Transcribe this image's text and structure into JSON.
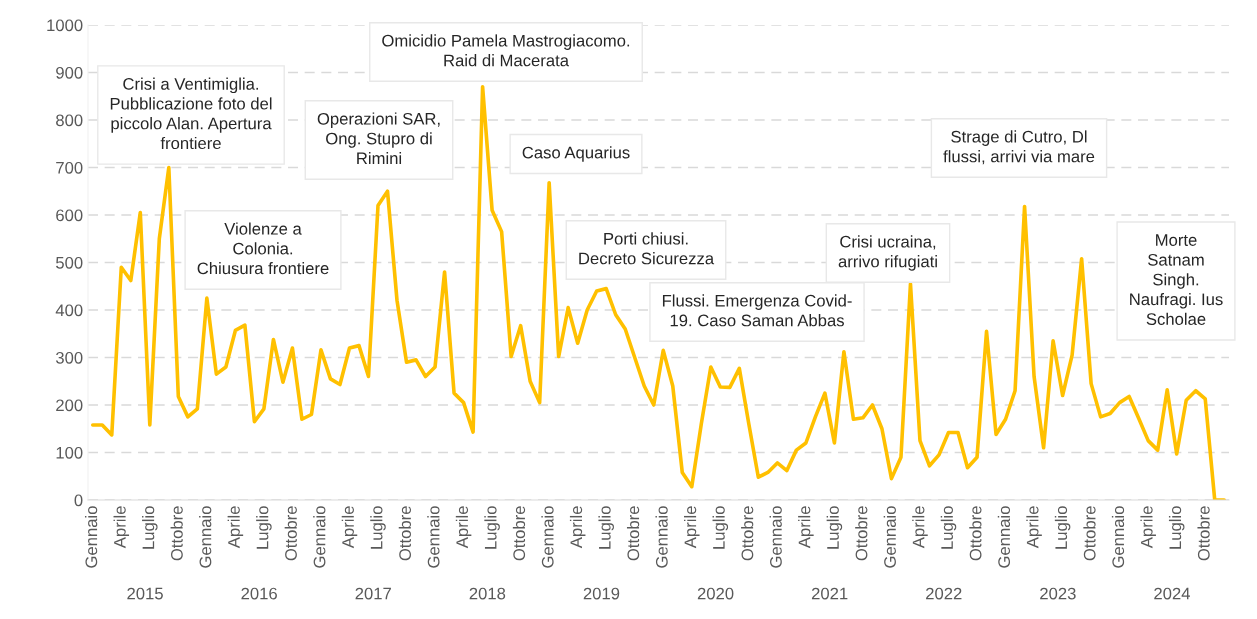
{
  "chart_data": {
    "type": "line",
    "categories": [
      "Gennaio",
      null,
      null,
      "Aprile",
      null,
      null,
      "Luglio",
      null,
      null,
      "Ottobre",
      null,
      null,
      "Gennaio",
      null,
      null,
      "Aprile",
      null,
      null,
      "Luglio",
      null,
      null,
      "Ottobre",
      null,
      null,
      "Gennaio",
      null,
      null,
      "Aprile",
      null,
      null,
      "Luglio",
      null,
      null,
      "Ottobre",
      null,
      null,
      "Gennaio",
      null,
      null,
      "Aprile",
      null,
      null,
      "Luglio",
      null,
      null,
      "Ottobre",
      null,
      null,
      "Gennaio",
      null,
      null,
      "Aprile",
      null,
      null,
      "Luglio",
      null,
      null,
      "Ottobre",
      null,
      null,
      "Gennaio",
      null,
      null,
      "Aprile",
      null,
      null,
      "Luglio",
      null,
      null,
      "Ottobre",
      null,
      null,
      "Gennaio",
      null,
      null,
      "Aprile",
      null,
      null,
      "Luglio",
      null,
      null,
      "Ottobre",
      null,
      null,
      "Gennaio",
      null,
      null,
      "Aprile",
      null,
      null,
      "Luglio",
      null,
      null,
      "Ottobre",
      null,
      null,
      "Gennaio",
      null,
      null,
      "Aprile",
      null,
      null,
      "Luglio",
      null,
      null,
      "Ottobre",
      null,
      null,
      "Gennaio",
      null,
      null,
      "Aprile",
      null,
      null,
      "Luglio",
      null,
      null,
      "Ottobre",
      null,
      null
    ],
    "series": [
      {
        "color": "#ffc000",
        "values": [
          158,
          158,
          137,
          490,
          462,
          605,
          158,
          550,
          700,
          218,
          175,
          192,
          425,
          265,
          280,
          357,
          368,
          165,
          192,
          338,
          248,
          320,
          170,
          180,
          316,
          255,
          243,
          320,
          325,
          260,
          620,
          650,
          420,
          290,
          295,
          260,
          280,
          480,
          225,
          205,
          143,
          870,
          610,
          565,
          302,
          367,
          250,
          205,
          668,
          302,
          405,
          330,
          400,
          440,
          445,
          390,
          360,
          300,
          240,
          200,
          315,
          240,
          58,
          28,
          160,
          280,
          238,
          237,
          277,
          160,
          48,
          58,
          78,
          62,
          105,
          120,
          175,
          225,
          120,
          312,
          170,
          173,
          200,
          150,
          45,
          90,
          455,
          125,
          72,
          95,
          142,
          142,
          68,
          90,
          355,
          138,
          170,
          230,
          618,
          260,
          110,
          335,
          220,
          305,
          508,
          245,
          175,
          182,
          205,
          218,
          172,
          125,
          105,
          232,
          97,
          210,
          230,
          213,
          0,
          0
        ]
      }
    ],
    "ylim": [
      0,
      1000
    ],
    "yticks": [
      0,
      100,
      200,
      300,
      400,
      500,
      600,
      700,
      800,
      900,
      1000
    ],
    "grid": "y",
    "marker": "none",
    "line_style": "solid",
    "annotations": [
      "Crisi a Ventimiglia.\nPubblicazione foto del\npiccolo Alan. Apertura\nfrontiere",
      "Violenze a\nColonia.\nChiusura frontiere",
      "Operazioni SAR,\nOng. Stupro di\nRimini",
      "Omicidio Pamela Mastrogiacomo.\nRaid di Macerata",
      "Caso Aquarius",
      "Porti chiusi.\nDecreto Sicurezza",
      "Flussi. Emergenza Covid-\n19. Caso Saman Abbas",
      "Crisi ucraina,\narrivo rifugiati",
      "Strage di Cutro, Dl\nflussi, arrivi via mare",
      "Morte\nSatnam\nSingh.\nNaufragi. Ius\nScholae",
      "2015",
      "2016",
      "2017",
      "2018",
      "2019",
      "2020",
      "2021",
      "2022",
      "2023",
      "2024"
    ]
  }
}
